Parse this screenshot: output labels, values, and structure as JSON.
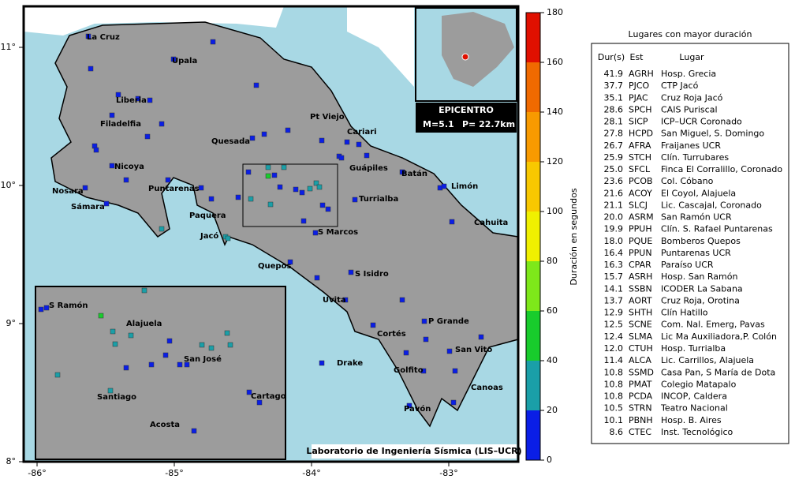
{
  "map": {
    "lon_ticks": [
      {
        "value": -86,
        "label": "-86°"
      },
      {
        "value": -85,
        "label": "-85°"
      },
      {
        "value": -84,
        "label": "-84°"
      },
      {
        "value": -83,
        "label": "-83°"
      }
    ],
    "lat_ticks": [
      {
        "value": 8,
        "label": "8°"
      },
      {
        "value": 9,
        "label": "9°"
      },
      {
        "value": 10,
        "label": "10°"
      },
      {
        "value": 11,
        "label": "11°"
      }
    ],
    "places": [
      "La Cruz",
      "Upala",
      "Liberia",
      "Filadelfia",
      "Nicoya",
      "Nosara",
      "Sámara",
      "Puntarenas",
      "Paquera",
      "Jacó",
      "Quesada",
      "Pt Viejo",
      "Cariari",
      "Guápiles",
      "Batán",
      "Limón",
      "Turrialba",
      "Cahuita",
      "S Marcos",
      "Quepos",
      "S Isidro",
      "Uvita",
      "P Grande",
      "Cortés",
      "San Vito",
      "Drake",
      "Golfito",
      "Canoas",
      "Pavón"
    ],
    "inset_places": [
      "S Ramón",
      "Alajuela",
      "San José",
      "Santiago",
      "Cartago",
      "Acosta"
    ],
    "epicenter": {
      "title": "EPICENTRO",
      "magnitude": "M=5.1",
      "depth": "P= 22.7km"
    },
    "credit": "Laboratorio de Ingeniería Sísmica (LIS–UCR)"
  },
  "colorbar": {
    "label": "Duración en segundos",
    "range": [
      0,
      180
    ],
    "ticks": [
      0,
      20,
      40,
      60,
      80,
      100,
      120,
      140,
      160,
      180
    ],
    "colors": [
      "#0a1ee6",
      "#1a9fa8",
      "#18cc2c",
      "#7ee81a",
      "#f0f000",
      "#f8c800",
      "#f89a00",
      "#f06a00",
      "#e01000"
    ]
  },
  "table": {
    "title": "Lugares con mayor duración",
    "headers": [
      "Dur(s)",
      "Est",
      "Lugar"
    ],
    "rows": [
      [
        "41.9",
        "AGRH",
        "Hosp. Grecia"
      ],
      [
        "37.7",
        "PJCO",
        "CTP Jacó"
      ],
      [
        "35.1",
        "PJAC",
        "Cruz Roja Jacó"
      ],
      [
        "28.6",
        "SPCH",
        "CAIS Puriscal"
      ],
      [
        "28.1",
        "SICP",
        "ICP–UCR Coronado"
      ],
      [
        "27.8",
        "HCPD",
        "San Miguel, S. Domingo"
      ],
      [
        "26.7",
        "AFRA",
        "Fraijanes UCR"
      ],
      [
        "25.9",
        "STCH",
        "Clín. Turrubares"
      ],
      [
        "25.0",
        "SFCL",
        "Finca El Corralillo, Coronado"
      ],
      [
        "23.6",
        "PCOB",
        "Col. Cóbano"
      ],
      [
        "21.6",
        "ACOY",
        "El Coyol, Alajuela"
      ],
      [
        "21.1",
        "SLCJ",
        "Lic. Cascajal, Coronado"
      ],
      [
        "20.0",
        "ASRM",
        "San Ramón UCR"
      ],
      [
        "19.9",
        "PPUH",
        "Clín. S. Rafael Puntarenas"
      ],
      [
        "18.0",
        "PQUE",
        "Bomberos Quepos"
      ],
      [
        "16.4",
        "PPUN",
        "Puntarenas UCR"
      ],
      [
        "16.3",
        "CPAR",
        "Paraíso UCR"
      ],
      [
        "15.7",
        "ASRH",
        "Hosp. San Ramón"
      ],
      [
        "14.1",
        "SSBN",
        "ICODER La Sabana"
      ],
      [
        "13.7",
        "AORT",
        "Cruz Roja, Orotina"
      ],
      [
        "12.9",
        "SHTH",
        "Clín Hatillo"
      ],
      [
        "12.5",
        "SCNE",
        "Com. Nal. Emerg, Pavas"
      ],
      [
        "12.4",
        "SLMA",
        "Lic Ma Auxiliadora,P. Colón"
      ],
      [
        "12.0",
        "CTUH",
        "Hosp. Turrialba"
      ],
      [
        "11.4",
        "ALCA",
        "Lic. Carrillos, Alajuela"
      ],
      [
        "10.8",
        "SSMD",
        "Casa Pan, S María de Dota"
      ],
      [
        "10.8",
        "PMAT",
        "Colegio Matapalo"
      ],
      [
        "10.8",
        "PCDA",
        "INCOP, Caldera"
      ],
      [
        "10.5",
        "STRN",
        "Teatro Nacional"
      ],
      [
        "10.1",
        "PBNH",
        "Hosp. B. Aires"
      ],
      [
        "8.6",
        "CTEC",
        "Inst. Tecnológico"
      ]
    ]
  }
}
